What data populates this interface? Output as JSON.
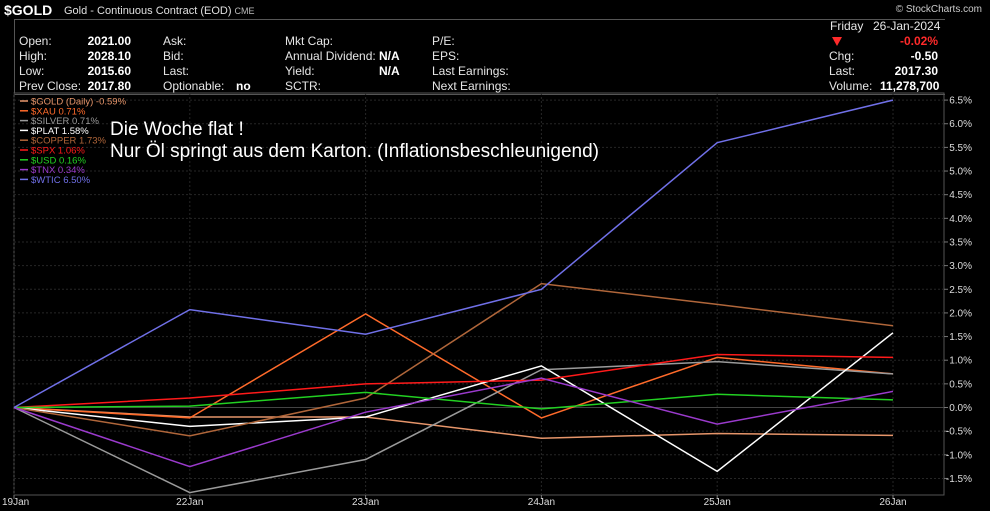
{
  "header": {
    "symbol": "$GOLD",
    "title": "Gold - Continuous Contract (EOD)",
    "exchange": "CME",
    "brand": "© StockCharts.com"
  },
  "quote": {
    "open_label": "Open:",
    "open": "2021.00",
    "high_label": "High:",
    "high": "2028.10",
    "low_label": "Low:",
    "low": "2015.60",
    "prevclose_label": "Prev Close:",
    "prevclose": "2017.80",
    "ask_label": "Ask:",
    "bid_label": "Bid:",
    "last_label": "Last:",
    "optionable_label": "Optionable:",
    "optionable": "no",
    "mktcap_label": "Mkt Cap:",
    "anndiv_label": "Annual Dividend:",
    "anndiv": "N/A",
    "yield_label": "Yield:",
    "yield": "N/A",
    "sctr_label": "SCTR:",
    "pe_label": "P/E:",
    "eps_label": "EPS:",
    "lastearn_label": "Last Earnings:",
    "nextearn_label": "Next Earnings:",
    "day": "Friday",
    "date": "26-Jan-2024",
    "chgpct": "-0.02%",
    "chg_label": "Chg:",
    "chg": "-0.50",
    "last2_label": "Last:",
    "last2": "2017.30",
    "volume_label": "Volume:",
    "volume": "11,278,700"
  },
  "annotation": {
    "line1": "Die Woche flat !",
    "line2": "Nur Öl springt aus dem Karton. (Inflationsbeschleunigend)"
  },
  "chart_data": {
    "type": "line",
    "x": [
      "19Jan",
      "22Jan",
      "23Jan",
      "24Jan",
      "25Jan",
      "26Jan"
    ],
    "y_ticks": [
      "6.5%",
      "6.0%",
      "5.5%",
      "5.0%",
      "4.5%",
      "4.0%",
      "3.5%",
      "3.0%",
      "2.5%",
      "2.0%",
      "1.5%",
      "1.0%",
      "0.5%",
      "0.0%",
      "-0.5%",
      "-1.0%",
      "-1.5%"
    ],
    "ylim": [
      -1.85,
      6.65
    ],
    "grid": true,
    "legend_position": "top-left",
    "series": [
      {
        "name": "$GOLD (Daily) -0.59%",
        "color": "#e6956a",
        "values": [
          0,
          -0.2,
          -0.2,
          -0.65,
          -0.55,
          -0.59
        ]
      },
      {
        "name": "$XAU 0.71%",
        "color": "#ff6a2a",
        "values": [
          0,
          -0.22,
          1.98,
          -0.22,
          1.06,
          0.71
        ]
      },
      {
        "name": "$SILVER 0.71%",
        "color": "#9a9a9a",
        "values": [
          0,
          -1.8,
          -1.1,
          0.8,
          0.97,
          0.71
        ]
      },
      {
        "name": "$PLAT 1.58%",
        "color": "#ffffff",
        "values": [
          0,
          -0.4,
          -0.2,
          0.88,
          -1.35,
          1.58
        ]
      },
      {
        "name": "$COPPER 1.73%",
        "color": "#b0663a",
        "values": [
          0,
          -0.6,
          0.2,
          2.62,
          2.18,
          1.73
        ]
      },
      {
        "name": "$SPX 1.06%",
        "color": "#ff1a1a",
        "values": [
          0,
          0.2,
          0.5,
          0.58,
          1.12,
          1.06
        ]
      },
      {
        "name": "$USD 0.16%",
        "color": "#22d022",
        "values": [
          0,
          0.03,
          0.32,
          -0.03,
          0.28,
          0.16
        ]
      },
      {
        "name": "$TNX 0.34%",
        "color": "#9a3acc",
        "values": [
          0,
          -1.25,
          -0.1,
          0.62,
          -0.35,
          0.34
        ]
      },
      {
        "name": "$WTIC 6.50%",
        "color": "#7070e8",
        "values": [
          0,
          2.07,
          1.55,
          2.5,
          5.6,
          6.5
        ]
      }
    ]
  }
}
